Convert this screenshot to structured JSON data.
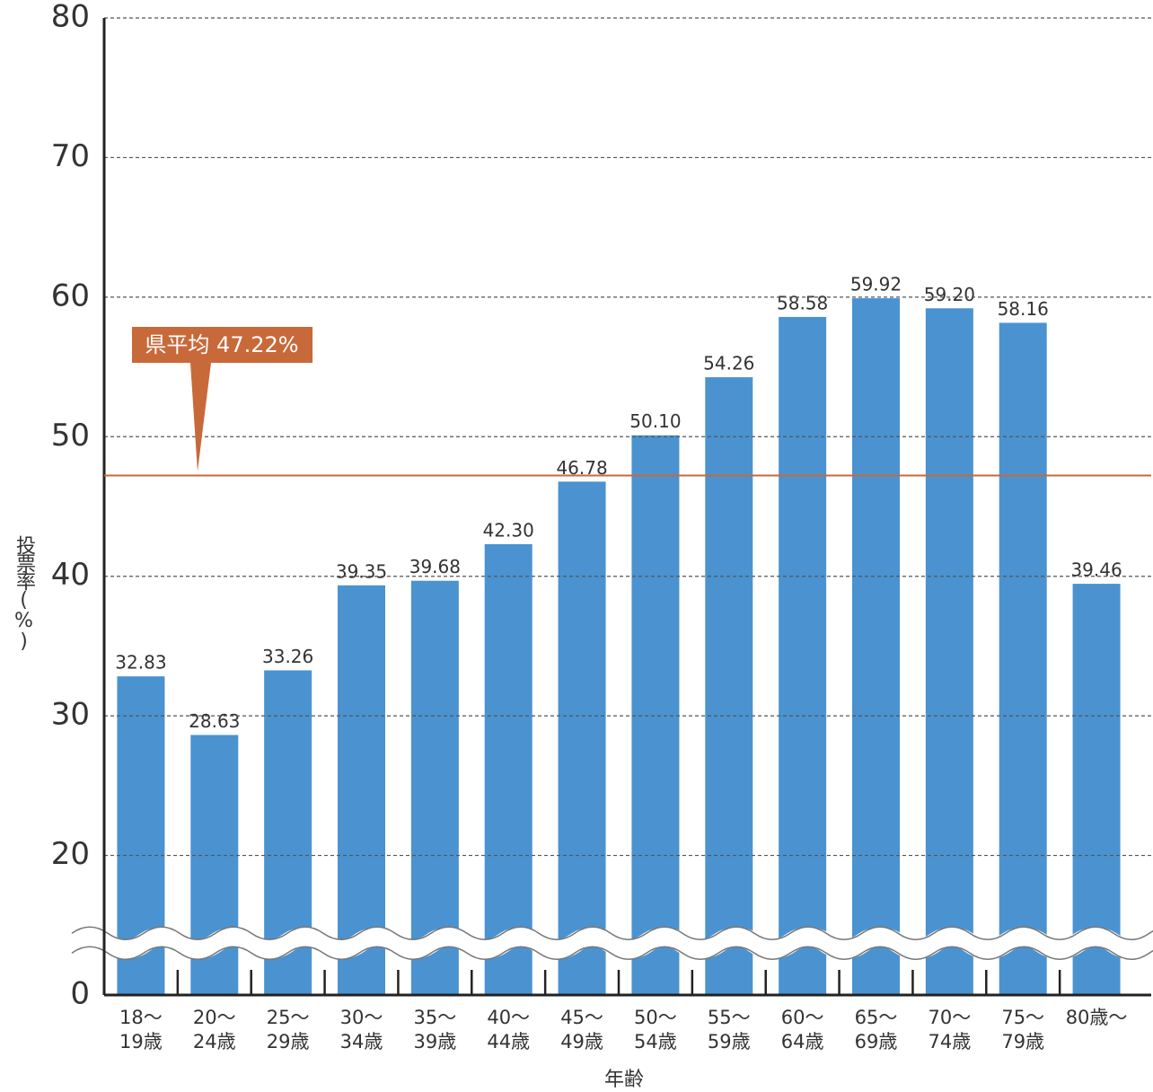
{
  "chart_data": {
    "type": "bar",
    "y_label": "投票率(%)",
    "x_label": "年齢",
    "categories": [
      "18〜\n19歳",
      "20〜\n24歳",
      "25〜\n29歳",
      "30〜\n34歳",
      "35〜\n39歳",
      "40〜\n44歳",
      "45〜\n49歳",
      "50〜\n54歳",
      "55〜\n59歳",
      "60〜\n64歳",
      "65〜\n69歳",
      "70〜\n74歳",
      "75〜\n79歳",
      "80歳〜"
    ],
    "values": [
      32.83,
      28.63,
      33.26,
      39.35,
      39.68,
      42.3,
      46.78,
      50.1,
      54.26,
      58.58,
      59.92,
      59.2,
      58.16,
      39.46
    ],
    "value_labels": [
      "32.83",
      "28.63",
      "33.26",
      "39.35",
      "39.68",
      "42.30",
      "46.78",
      "50.10",
      "54.26",
      "58.58",
      "59.92",
      "59.20",
      "58.16",
      "39.46"
    ],
    "color": "#4a93d0",
    "ylim": [
      0,
      80
    ],
    "yticks": [
      0,
      20,
      30,
      40,
      50,
      60,
      70,
      80
    ],
    "axis_break": [
      0,
      20
    ],
    "grid": true,
    "reference": {
      "value": 47.22,
      "label": "県平均 47.22%",
      "color": "#c8693a"
    }
  }
}
